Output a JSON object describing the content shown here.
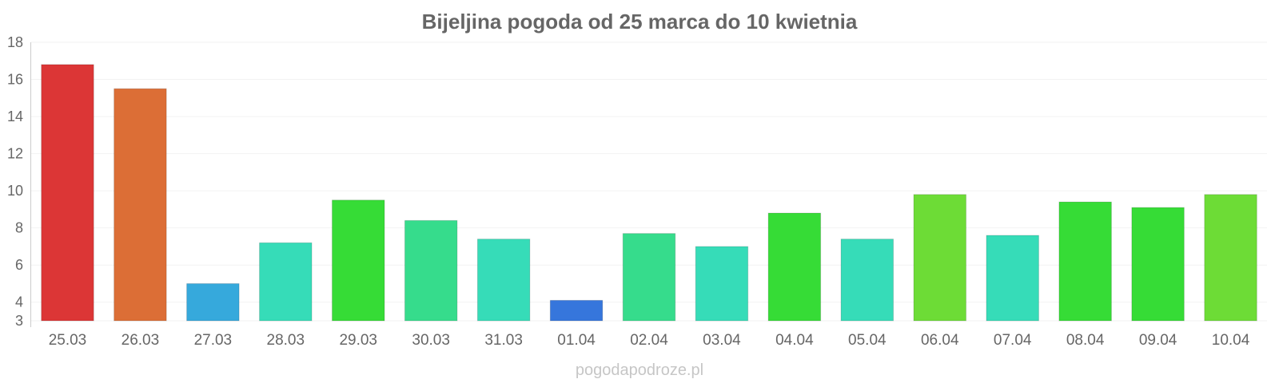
{
  "chart_data": {
    "type": "bar",
    "title": "Bijeljina pogoda od 25 marca do 10 kwietnia",
    "xlabel": "",
    "ylabel": "",
    "ylim": [
      3,
      18
    ],
    "yticks": [
      3,
      4,
      6,
      8,
      10,
      12,
      14,
      16,
      18
    ],
    "grid": true,
    "categories": [
      "25.03",
      "26.03",
      "27.03",
      "28.03",
      "29.03",
      "30.03",
      "31.03",
      "01.04",
      "02.04",
      "03.04",
      "04.04",
      "05.04",
      "06.04",
      "07.04",
      "08.04",
      "09.04",
      "10.04"
    ],
    "values": [
      16.8,
      15.5,
      5.0,
      7.2,
      9.5,
      8.4,
      7.4,
      4.1,
      7.7,
      7.0,
      8.8,
      7.4,
      9.8,
      7.6,
      9.4,
      9.1,
      9.8
    ],
    "colors": [
      "#dc3636",
      "#dc6e36",
      "#36a9dc",
      "#36dcb8",
      "#36dc36",
      "#36dc8c",
      "#36dcb8",
      "#3676dc",
      "#36dc8c",
      "#36dcb8",
      "#36dc36",
      "#36dcb8",
      "#6ddc36",
      "#36dcb8",
      "#36dc36",
      "#36dc36",
      "#6ddc36"
    ]
  },
  "credit": "pogodapodroze.pl"
}
